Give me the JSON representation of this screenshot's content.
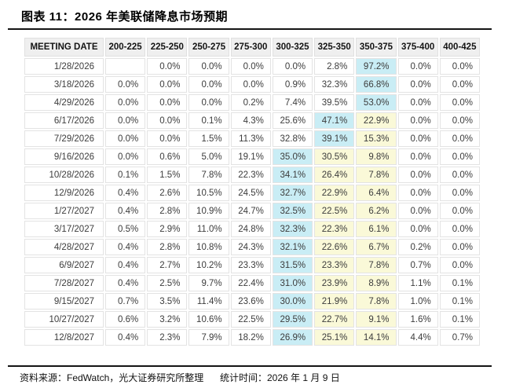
{
  "title": "图表 11：2026 年美联储降息市场预期",
  "footer": {
    "source": "资料来源：FedWatch，光大证券研究所整理",
    "stat_time": "统计时间：2026 年 1 月 9 日"
  },
  "colors": {
    "max_highlight": "#c9edf5",
    "secondary_highlight": "#faf9d8",
    "header_bg": "#efefef",
    "rule": "#141414"
  },
  "chart_data": {
    "type": "table",
    "title": "图表 11：2026 年美联储降息市场预期",
    "columns": [
      "MEETING DATE",
      "200-225",
      "225-250",
      "250-275",
      "275-300",
      "300-325",
      "325-350",
      "350-375",
      "375-400",
      "400-425"
    ],
    "highlight_legend": {
      "c": "cyan (row max probability)",
      "y": "yellow (secondary highlight)"
    },
    "rows": [
      {
        "date": "1/28/2026",
        "values": [
          "",
          "0.0%",
          "0.0%",
          "0.0%",
          "0.0%",
          "2.8%",
          "97.2%",
          "0.0%",
          "0.0%"
        ],
        "hl": [
          "",
          "",
          "",
          "",
          "",
          "",
          "c",
          "",
          ""
        ]
      },
      {
        "date": "3/18/2026",
        "values": [
          "0.0%",
          "0.0%",
          "0.0%",
          "0.0%",
          "0.9%",
          "32.3%",
          "66.8%",
          "0.0%",
          "0.0%"
        ],
        "hl": [
          "",
          "",
          "",
          "",
          "",
          "",
          "c",
          "",
          ""
        ]
      },
      {
        "date": "4/29/2026",
        "values": [
          "0.0%",
          "0.0%",
          "0.0%",
          "0.2%",
          "7.4%",
          "39.5%",
          "53.0%",
          "0.0%",
          "0.0%"
        ],
        "hl": [
          "",
          "",
          "",
          "",
          "",
          "",
          "c",
          "",
          ""
        ]
      },
      {
        "date": "6/17/2026",
        "values": [
          "0.0%",
          "0.0%",
          "0.1%",
          "4.3%",
          "25.6%",
          "47.1%",
          "22.9%",
          "0.0%",
          "0.0%"
        ],
        "hl": [
          "",
          "",
          "",
          "",
          "",
          "c",
          "y",
          "",
          ""
        ]
      },
      {
        "date": "7/29/2026",
        "values": [
          "0.0%",
          "0.0%",
          "1.5%",
          "11.3%",
          "32.8%",
          "39.1%",
          "15.3%",
          "0.0%",
          "0.0%"
        ],
        "hl": [
          "",
          "",
          "",
          "",
          "",
          "c",
          "y",
          "",
          ""
        ]
      },
      {
        "date": "9/16/2026",
        "values": [
          "0.0%",
          "0.6%",
          "5.0%",
          "19.1%",
          "35.0%",
          "30.5%",
          "9.8%",
          "0.0%",
          "0.0%"
        ],
        "hl": [
          "",
          "",
          "",
          "",
          "c",
          "y",
          "y",
          "",
          ""
        ]
      },
      {
        "date": "10/28/2026",
        "values": [
          "0.1%",
          "1.5%",
          "7.8%",
          "22.3%",
          "34.1%",
          "26.4%",
          "7.8%",
          "0.0%",
          "0.0%"
        ],
        "hl": [
          "",
          "",
          "",
          "",
          "c",
          "y",
          "y",
          "",
          ""
        ]
      },
      {
        "date": "12/9/2026",
        "values": [
          "0.4%",
          "2.6%",
          "10.5%",
          "24.5%",
          "32.7%",
          "22.9%",
          "6.4%",
          "0.0%",
          "0.0%"
        ],
        "hl": [
          "",
          "",
          "",
          "",
          "c",
          "y",
          "y",
          "",
          ""
        ]
      },
      {
        "date": "1/27/2027",
        "values": [
          "0.4%",
          "2.8%",
          "10.9%",
          "24.7%",
          "32.5%",
          "22.5%",
          "6.2%",
          "0.0%",
          "0.0%"
        ],
        "hl": [
          "",
          "",
          "",
          "",
          "c",
          "y",
          "y",
          "",
          ""
        ]
      },
      {
        "date": "3/17/2027",
        "values": [
          "0.5%",
          "2.9%",
          "11.0%",
          "24.8%",
          "32.3%",
          "22.3%",
          "6.1%",
          "0.0%",
          "0.0%"
        ],
        "hl": [
          "",
          "",
          "",
          "",
          "c",
          "y",
          "y",
          "",
          ""
        ]
      },
      {
        "date": "4/28/2027",
        "values": [
          "0.4%",
          "2.8%",
          "10.8%",
          "24.3%",
          "32.1%",
          "22.6%",
          "6.7%",
          "0.2%",
          "0.0%"
        ],
        "hl": [
          "",
          "",
          "",
          "",
          "c",
          "y",
          "y",
          "",
          ""
        ]
      },
      {
        "date": "6/9/2027",
        "values": [
          "0.4%",
          "2.7%",
          "10.2%",
          "23.3%",
          "31.5%",
          "23.3%",
          "7.8%",
          "0.7%",
          "0.0%"
        ],
        "hl": [
          "",
          "",
          "",
          "",
          "c",
          "y",
          "y",
          "",
          ""
        ]
      },
      {
        "date": "7/28/2027",
        "values": [
          "0.4%",
          "2.5%",
          "9.7%",
          "22.4%",
          "31.0%",
          "23.9%",
          "8.9%",
          "1.1%",
          "0.1%"
        ],
        "hl": [
          "",
          "",
          "",
          "",
          "c",
          "y",
          "y",
          "",
          ""
        ]
      },
      {
        "date": "9/15/2027",
        "values": [
          "0.7%",
          "3.5%",
          "11.4%",
          "23.6%",
          "30.0%",
          "21.9%",
          "7.8%",
          "1.0%",
          "0.1%"
        ],
        "hl": [
          "",
          "",
          "",
          "",
          "c",
          "y",
          "y",
          "",
          ""
        ]
      },
      {
        "date": "10/27/2027",
        "values": [
          "0.6%",
          "3.2%",
          "10.6%",
          "22.5%",
          "29.5%",
          "22.7%",
          "9.1%",
          "1.6%",
          "0.1%"
        ],
        "hl": [
          "",
          "",
          "",
          "",
          "c",
          "y",
          "y",
          "",
          ""
        ]
      },
      {
        "date": "12/8/2027",
        "values": [
          "0.4%",
          "2.3%",
          "7.9%",
          "18.2%",
          "26.9%",
          "25.1%",
          "14.1%",
          "4.4%",
          "0.7%"
        ],
        "hl": [
          "",
          "",
          "",
          "",
          "c",
          "y",
          "y",
          "",
          ""
        ]
      }
    ]
  }
}
